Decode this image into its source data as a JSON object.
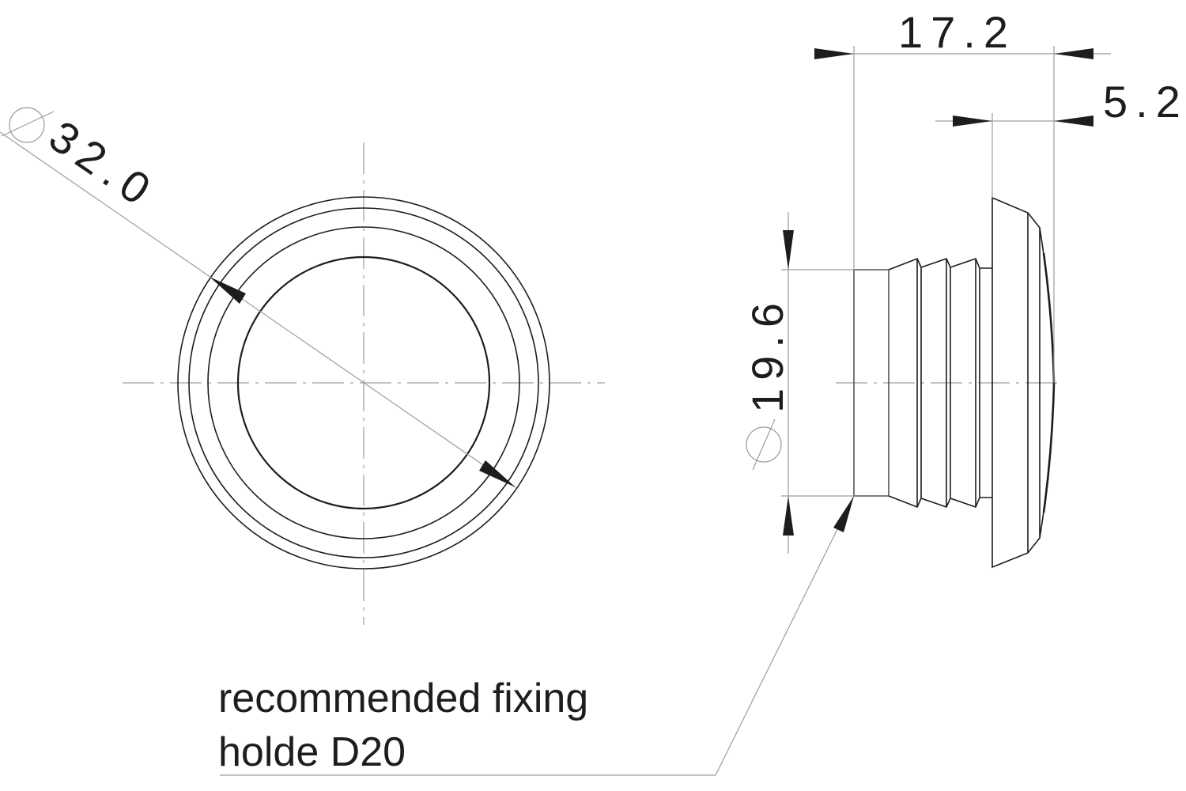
{
  "drawing": {
    "front_view": {
      "diameter_symbol": "diameter-icon",
      "outer_diameter": "32.0"
    },
    "side_view": {
      "overall_length": "17.2",
      "flange_thickness": "5.2",
      "shank_diameter": "19.6",
      "diameter_symbol": "diameter-icon"
    },
    "note": {
      "line1": "recommended fixing",
      "line2": "holde D20"
    },
    "colors": {
      "outline": "#1d1d1b",
      "dimension_lines": "#9d9d9c"
    }
  }
}
